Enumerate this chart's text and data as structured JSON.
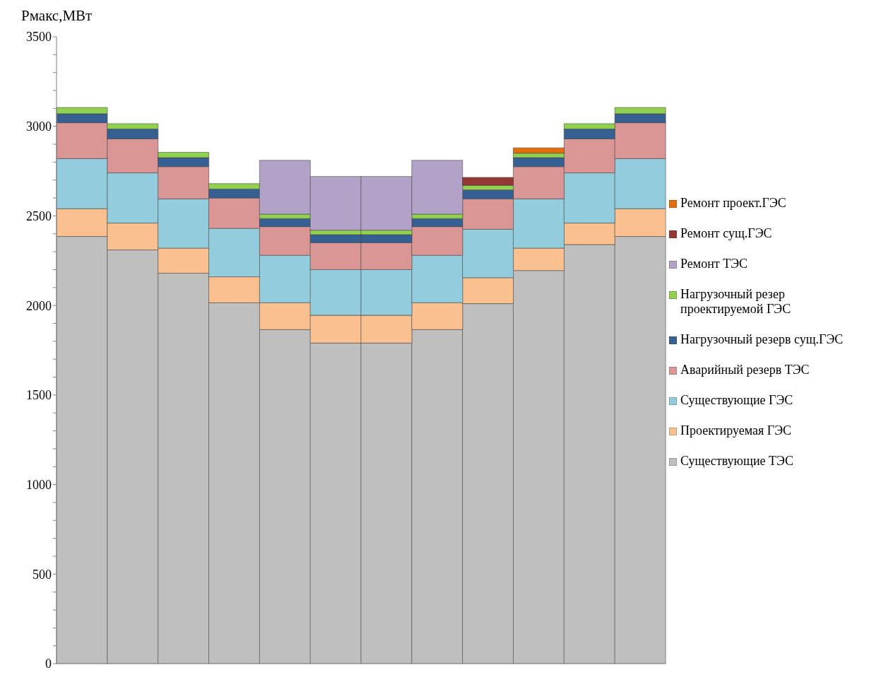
{
  "chart_data": {
    "type": "bar",
    "stacked": true,
    "ylabel": "Рмакс,МВт",
    "categories": [
      null,
      null,
      null,
      null,
      null,
      null,
      null,
      null,
      null,
      null,
      null,
      null
    ],
    "ylim": [
      0,
      3500
    ],
    "yticks": [
      0,
      {
        "value": 100,
        "label": null
      },
      {
        "value": 200,
        "label": null
      },
      {
        "value": 300,
        "label": null
      },
      {
        "value": 400,
        "label": null
      },
      500,
      {
        "value": 600,
        "label": null
      },
      {
        "value": 700,
        "label": null
      },
      {
        "value": 800,
        "label": null
      },
      {
        "value": 900,
        "label": null
      },
      1000,
      {
        "value": 1100,
        "label": null
      },
      {
        "value": 1200,
        "label": null
      },
      {
        "value": 1300,
        "label": null
      },
      {
        "value": 1400,
        "label": null
      },
      1500,
      {
        "value": 1600,
        "label": null
      },
      {
        "value": 1700,
        "label": null
      },
      {
        "value": 1800,
        "label": null
      },
      {
        "value": 1900,
        "label": null
      },
      2000,
      {
        "value": 2100,
        "label": null
      },
      {
        "value": 2200,
        "label": null
      },
      {
        "value": 2300,
        "label": null
      },
      {
        "value": 2400,
        "label": null
      },
      2500,
      {
        "value": 2600,
        "label": null
      },
      {
        "value": 2700,
        "label": null
      },
      {
        "value": 2800,
        "label": null
      },
      {
        "value": 2900,
        "label": null
      },
      3000,
      {
        "value": 3100,
        "label": null
      },
      {
        "value": 3200,
        "label": null
      },
      {
        "value": 3300,
        "label": null
      },
      {
        "value": 3400,
        "label": null
      },
      3500
    ],
    "tick_labels": "y",
    "legend": "right",
    "series": [
      {
        "name": "Существующие ТЭС",
        "color": "#bfbfbf",
        "values": [
          2385,
          2310,
          2180,
          2015,
          1865,
          1790,
          1790,
          1865,
          2010,
          2195,
          2340,
          2385
        ]
      },
      {
        "name": "Проектируемая ГЭС",
        "color": "#fac090",
        "values": [
          155,
          150,
          140,
          145,
          150,
          155,
          155,
          150,
          145,
          125,
          120,
          155
        ]
      },
      {
        "name": "Существующие ГЭС",
        "color": "#93cddd",
        "values": [
          280,
          280,
          275,
          270,
          265,
          255,
          255,
          265,
          270,
          275,
          280,
          280
        ]
      },
      {
        "name": "Аварийный резерв ТЭС",
        "color": "#d99694",
        "values": [
          200,
          190,
          180,
          170,
          160,
          150,
          150,
          160,
          170,
          180,
          190,
          200
        ]
      },
      {
        "name": "Нагрузочный резерв сущ.ГЭС",
        "color": "#376092",
        "values": [
          50,
          55,
          50,
          50,
          45,
          45,
          45,
          45,
          50,
          50,
          55,
          50
        ]
      },
      {
        "name": "Нагрузочный резер проектируемой ГЭС",
        "color": "#92d050",
        "values": [
          35,
          30,
          30,
          30,
          25,
          25,
          25,
          25,
          25,
          25,
          30,
          35
        ]
      },
      {
        "name": "Ремонт ТЭС",
        "color": "#b3a2c7",
        "values": [
          null,
          null,
          null,
          null,
          300,
          300,
          300,
          300,
          null,
          null,
          null,
          null
        ]
      },
      {
        "name": "Ремонт сущ.ГЭС",
        "color": "#953735",
        "values": [
          null,
          null,
          null,
          null,
          null,
          null,
          null,
          null,
          45,
          null,
          null,
          null
        ]
      },
      {
        "name": "Ремонт проект.ГЭС",
        "color": "#e46c0a",
        "values": [
          null,
          null,
          null,
          null,
          null,
          null,
          null,
          null,
          null,
          30,
          null,
          null
        ]
      }
    ]
  }
}
